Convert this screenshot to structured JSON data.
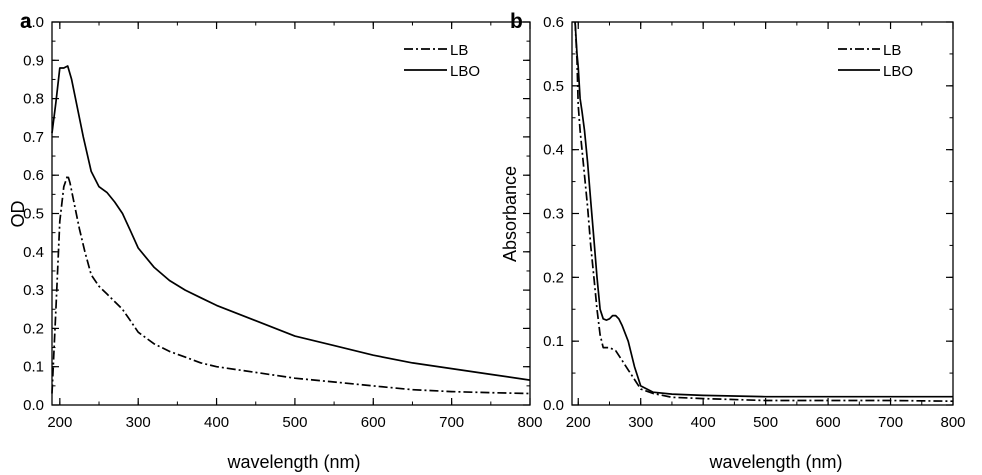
{
  "chart_data": [
    {
      "panel_label": "a",
      "type": "line",
      "xlabel": "wavelength (nm)",
      "ylabel": "OD",
      "xlim": [
        190,
        800
      ],
      "ylim": [
        0,
        1.0
      ],
      "x_ticks": [
        200,
        300,
        400,
        500,
        600,
        700,
        800
      ],
      "y_ticks": [
        0.0,
        0.1,
        0.2,
        0.3,
        0.4,
        0.5,
        0.6,
        0.7,
        0.8,
        0.9,
        1.0
      ],
      "tick_labels_x": [
        "200",
        "300",
        "400",
        "500",
        "600",
        "700",
        "800"
      ],
      "tick_labels_y": [
        "0.0",
        "0.1",
        "0.2",
        "0.3",
        "0.4",
        "0.5",
        "0.6",
        "0.7",
        "0.8",
        "0.9",
        "1.0"
      ],
      "grid": false,
      "legend_position": "top-right",
      "series": [
        {
          "name": "LB",
          "style": "dashdot",
          "x": [
            190,
            195,
            200,
            205,
            210,
            213,
            218,
            225,
            232,
            240,
            250,
            260,
            270,
            280,
            290,
            300,
            320,
            340,
            360,
            380,
            400,
            450,
            500,
            550,
            600,
            650,
            700,
            750,
            800
          ],
          "y": [
            0.03,
            0.25,
            0.48,
            0.57,
            0.6,
            0.58,
            0.53,
            0.46,
            0.4,
            0.34,
            0.31,
            0.29,
            0.27,
            0.25,
            0.22,
            0.19,
            0.16,
            0.14,
            0.125,
            0.11,
            0.1,
            0.085,
            0.07,
            0.06,
            0.05,
            0.04,
            0.035,
            0.032,
            0.03
          ]
        },
        {
          "name": "LBO",
          "style": "solid",
          "x": [
            190,
            195,
            200,
            205,
            210,
            215,
            220,
            230,
            240,
            250,
            260,
            270,
            280,
            290,
            300,
            320,
            340,
            360,
            380,
            400,
            450,
            500,
            550,
            600,
            650,
            700,
            750,
            800
          ],
          "y": [
            0.71,
            0.79,
            0.88,
            0.88,
            0.885,
            0.85,
            0.8,
            0.7,
            0.61,
            0.57,
            0.555,
            0.53,
            0.5,
            0.455,
            0.41,
            0.36,
            0.325,
            0.3,
            0.28,
            0.26,
            0.22,
            0.18,
            0.155,
            0.13,
            0.11,
            0.095,
            0.08,
            0.065
          ]
        }
      ]
    },
    {
      "panel_label": "b",
      "type": "line",
      "xlabel": "wavelength (nm)",
      "ylabel": "Absorbance",
      "xlim": [
        190,
        800
      ],
      "ylim": [
        0,
        0.6
      ],
      "x_ticks": [
        200,
        300,
        400,
        500,
        600,
        700,
        800
      ],
      "y_ticks": [
        0.0,
        0.1,
        0.2,
        0.3,
        0.4,
        0.5,
        0.6
      ],
      "tick_labels_x": [
        "200",
        "300",
        "400",
        "500",
        "600",
        "700",
        "800"
      ],
      "tick_labels_y": [
        "0.0",
        "0.1",
        "0.2",
        "0.3",
        "0.4",
        "0.5",
        "0.6"
      ],
      "grid": false,
      "legend_position": "top-right",
      "series": [
        {
          "name": "LB",
          "style": "dashdot",
          "x": [
            195,
            198,
            200,
            203,
            206,
            210,
            215,
            220,
            225,
            230,
            235,
            240,
            250,
            260,
            270,
            280,
            290,
            300,
            320,
            350,
            400,
            500,
            600,
            700,
            800
          ],
          "y": [
            0.6,
            0.54,
            0.47,
            0.43,
            0.4,
            0.36,
            0.31,
            0.25,
            0.2,
            0.15,
            0.11,
            0.09,
            0.09,
            0.085,
            0.07,
            0.055,
            0.04,
            0.025,
            0.018,
            0.012,
            0.01,
            0.007,
            0.007,
            0.007,
            0.006
          ]
        },
        {
          "name": "LBO",
          "style": "solid",
          "x": [
            195,
            198,
            200,
            203,
            206,
            210,
            215,
            220,
            225,
            230,
            235,
            240,
            245,
            250,
            255,
            260,
            265,
            270,
            280,
            290,
            300,
            320,
            350,
            400,
            500,
            600,
            700,
            800
          ],
          "y": [
            0.6,
            0.55,
            0.53,
            0.48,
            0.46,
            0.43,
            0.38,
            0.32,
            0.26,
            0.2,
            0.15,
            0.135,
            0.133,
            0.135,
            0.14,
            0.14,
            0.135,
            0.125,
            0.1,
            0.06,
            0.03,
            0.02,
            0.017,
            0.015,
            0.013,
            0.013,
            0.013,
            0.013
          ]
        }
      ]
    }
  ]
}
